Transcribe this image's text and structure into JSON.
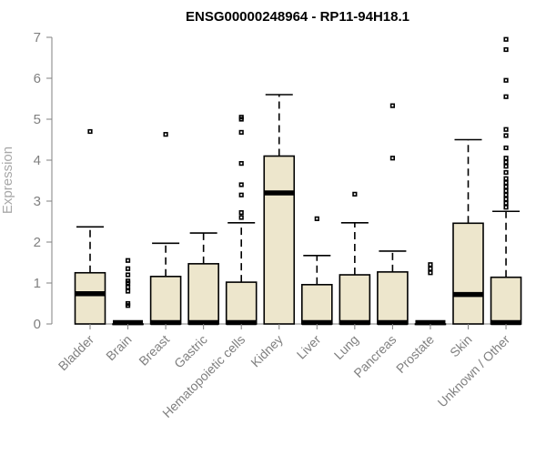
{
  "chart_data": {
    "type": "boxplot",
    "title": "ENSG00000248964 - RP11-94H18.1",
    "ylabel": "Expression",
    "xlabel": "",
    "ylim": [
      0,
      7
    ],
    "yticks": [
      0,
      1,
      2,
      3,
      4,
      5,
      6,
      7
    ],
    "grid": false,
    "colors": {
      "box_fill": "#ede6cc",
      "stroke": "#000000",
      "axis": "#808080",
      "title": "#000000"
    },
    "categories": [
      "Bladder",
      "Brain",
      "Breast",
      "Gastric",
      "Hematopoietic cells",
      "Kidney",
      "Liver",
      "Lung",
      "Pancreas",
      "Prostate",
      "Skin",
      "Unknown / Other"
    ],
    "boxes": [
      {
        "q1": 0.0,
        "median": 0.74,
        "q3": 1.25,
        "whisker_low": 0.0,
        "whisker_high": 2.37,
        "outliers": [
          4.7
        ]
      },
      {
        "q1": 0.0,
        "median": 0.0,
        "q3": 0.0,
        "whisker_low": 0.0,
        "whisker_high": 0.0,
        "outliers": [
          0.45,
          0.5,
          0.8,
          0.9,
          1.0,
          1.05,
          1.2,
          1.35,
          1.55
        ]
      },
      {
        "q1": 0.0,
        "median": 0.0,
        "q3": 1.16,
        "whisker_low": 0.0,
        "whisker_high": 1.97,
        "outliers": [
          4.63
        ]
      },
      {
        "q1": 0.0,
        "median": 0.0,
        "q3": 1.47,
        "whisker_low": 0.0,
        "whisker_high": 2.22,
        "outliers": []
      },
      {
        "q1": 0.0,
        "median": 0.0,
        "q3": 1.02,
        "whisker_low": 0.0,
        "whisker_high": 2.47,
        "outliers": [
          2.6,
          2.72,
          3.15,
          3.4,
          3.92,
          4.68,
          5.0,
          5.05
        ]
      },
      {
        "q1": 0.0,
        "median": 3.2,
        "q3": 4.1,
        "whisker_low": 0.0,
        "whisker_high": 5.6,
        "outliers": []
      },
      {
        "q1": 0.0,
        "median": 0.0,
        "q3": 0.96,
        "whisker_low": 0.0,
        "whisker_high": 1.67,
        "outliers": [
          2.57
        ]
      },
      {
        "q1": 0.0,
        "median": 0.0,
        "q3": 1.2,
        "whisker_low": 0.0,
        "whisker_high": 2.47,
        "outliers": [
          3.17
        ]
      },
      {
        "q1": 0.0,
        "median": 0.0,
        "q3": 1.27,
        "whisker_low": 0.0,
        "whisker_high": 1.78,
        "outliers": [
          4.05,
          5.33
        ]
      },
      {
        "q1": 0.0,
        "median": 0.0,
        "q3": 0.0,
        "whisker_low": 0.0,
        "whisker_high": 0.0,
        "outliers": [
          1.25,
          1.35,
          1.45
        ]
      },
      {
        "q1": 0.0,
        "median": 0.72,
        "q3": 2.46,
        "whisker_low": 0.0,
        "whisker_high": 4.5,
        "outliers": []
      },
      {
        "q1": 0.0,
        "median": 0.0,
        "q3": 1.14,
        "whisker_low": 0.0,
        "whisker_high": 2.75,
        "outliers": [
          2.85,
          2.95,
          3.05,
          3.15,
          3.25,
          3.35,
          3.45,
          3.55,
          3.7,
          3.85,
          3.95,
          4.05,
          4.3,
          4.6,
          4.75,
          5.55,
          5.95,
          6.7,
          6.95
        ]
      }
    ]
  }
}
